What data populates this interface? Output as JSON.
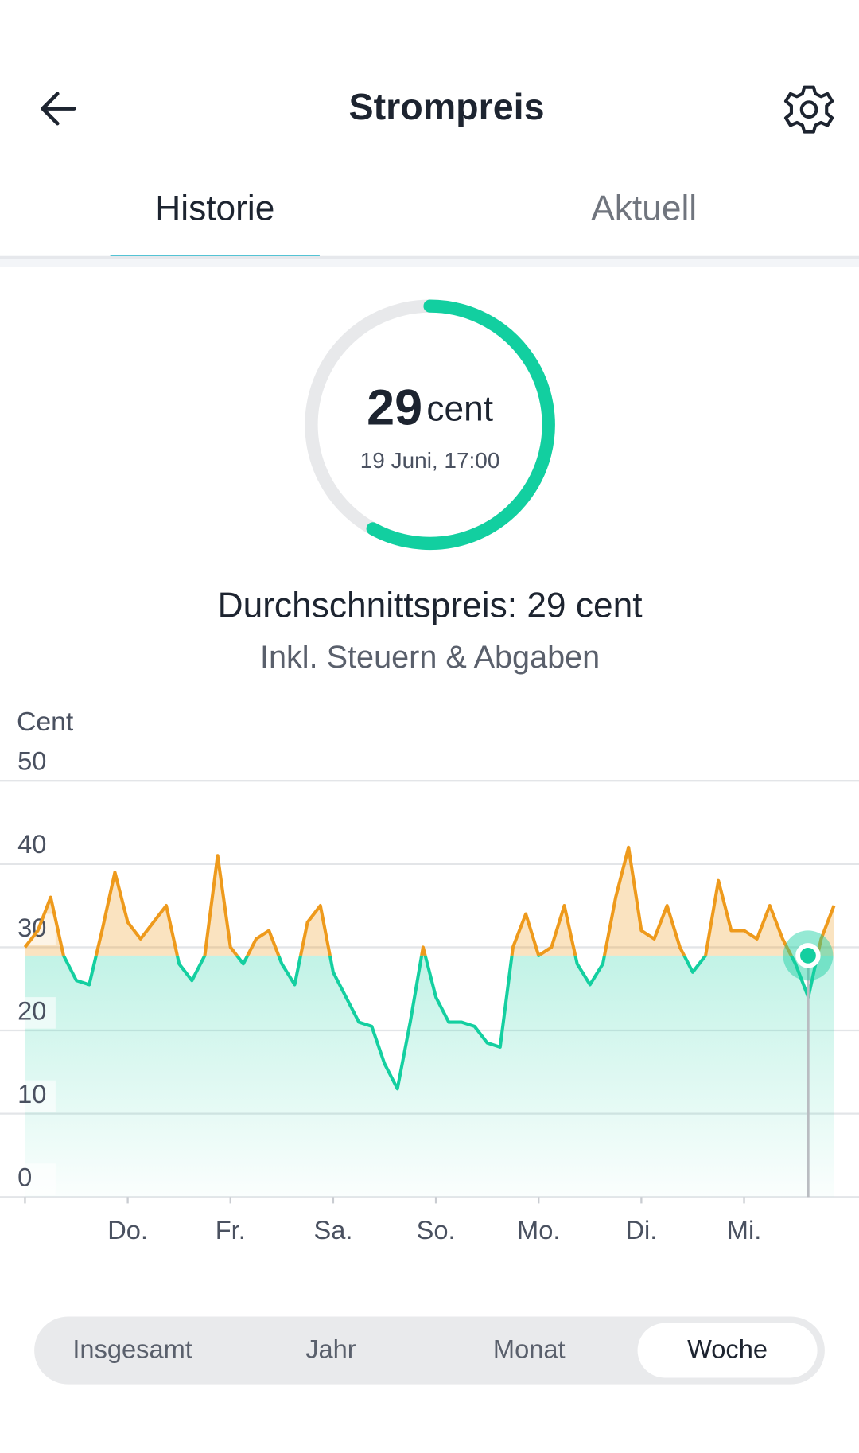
{
  "header": {
    "title": "Strompreis"
  },
  "tabs": {
    "items": [
      "Historie",
      "Aktuell"
    ],
    "active": 0
  },
  "gauge": {
    "value": 29,
    "unit": "cent",
    "timestamp": "19 Juni, 17:00"
  },
  "summary": {
    "label": "Durchschnittspreis:",
    "value": 29,
    "unit": "cent",
    "note": "Inkl. Steuern & Abgaben"
  },
  "chart_data": {
    "type": "line",
    "y_label": "Cent",
    "day_labels": [
      null,
      "Do.",
      "Fr.",
      "Sa.",
      "So.",
      "Mo.",
      "Di.",
      "Mi."
    ],
    "values": [
      30,
      32,
      36,
      29,
      26,
      25.5,
      32,
      39,
      33,
      31,
      33,
      35,
      28,
      26,
      29,
      41,
      30,
      28,
      31,
      32,
      28,
      25.5,
      33,
      35,
      27,
      24,
      21,
      20.5,
      16,
      13,
      21,
      30,
      24,
      21,
      21,
      20.5,
      18.5,
      18,
      30,
      34,
      29,
      30,
      35,
      28,
      25.5,
      28,
      36,
      42,
      32,
      31,
      35,
      30,
      27,
      29,
      38,
      32,
      32,
      31,
      35,
      31,
      28,
      24,
      31,
      35
    ],
    "ylim": [
      0,
      50
    ],
    "yticks": [
      0,
      10,
      20,
      30,
      40,
      50
    ],
    "grid": true,
    "color_above": "#ee9a1c",
    "color_below": "#14cfa0"
  },
  "periods": {
    "options": [
      "Insgesamt",
      "Jahr",
      "Monat",
      "Woche"
    ],
    "selected": 3
  }
}
